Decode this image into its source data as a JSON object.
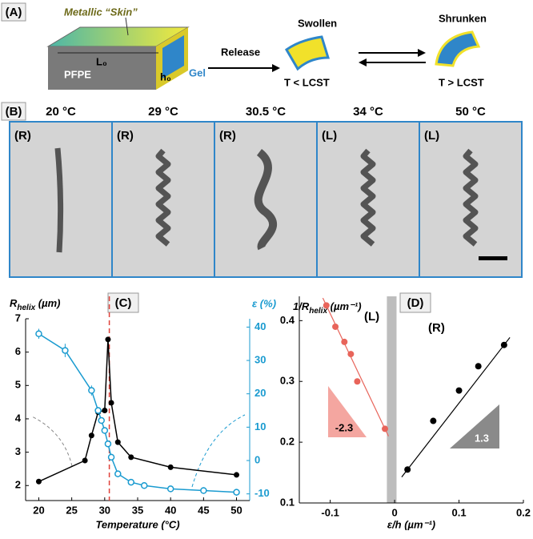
{
  "panel_a": {
    "label": "(A)",
    "skin": "Metallic “Skin”",
    "length": "L₀",
    "height": "h₀",
    "substrate": "PFPE",
    "gel": "Gel",
    "action": "Release",
    "state_1": "Swollen",
    "condition_1": "T < LCST",
    "state_2": "Shrunken",
    "condition_2": "T > LCST"
  },
  "panel_b": {
    "label": "(B)",
    "frames": [
      {
        "temperature": "20 °C",
        "handedness": "(R)"
      },
      {
        "temperature": "29 °C",
        "handedness": "(R)"
      },
      {
        "temperature": "30.5 °C",
        "handedness": "(R)"
      },
      {
        "temperature": "34 °C",
        "handedness": "(L)"
      },
      {
        "temperature": "50 °C",
        "handedness": "(L)"
      }
    ]
  },
  "chart_data": [
    {
      "type": "line",
      "panel_label": "(C)",
      "xlabel": "Temperature (°C)",
      "ylabel": "R",
      "ylabel_sub": "helix",
      "ylabel_unit": " (µm)",
      "y2label": "ε (%)",
      "xlim": [
        18,
        52
      ],
      "xticks": [
        20,
        25,
        30,
        35,
        40,
        45,
        50
      ],
      "ylim": [
        1.55,
        7
      ],
      "yticks": [
        2,
        3,
        4,
        5,
        6,
        7
      ],
      "y2lim": [
        -12,
        42.5
      ],
      "y2ticks": [
        -10,
        0,
        10,
        20,
        30,
        40
      ],
      "vline": 30.7,
      "series": [
        {
          "color": "#000000",
          "x": [
            20,
            27,
            28,
            29,
            30,
            30.5,
            31,
            32,
            34,
            40,
            50
          ],
          "values": [
            2.12,
            2.75,
            3.5,
            4.2,
            4.25,
            6.38,
            4.48,
            3.3,
            2.85,
            2.55,
            2.32
          ]
        },
        {
          "color": "#1a9bd0",
          "axis": "y2",
          "x": [
            20,
            24,
            28,
            29,
            29.5,
            30,
            30.5,
            31,
            32,
            34,
            36,
            40,
            45,
            50
          ],
          "values": [
            38,
            33,
            21,
            15,
            12,
            9,
            5,
            1,
            -4,
            -6.5,
            -7.5,
            -8.5,
            -9,
            -9.5
          ],
          "errors": [
            1.5,
            2,
            1.5,
            1,
            1,
            1,
            1,
            1,
            1,
            1,
            1,
            1,
            1,
            1
          ]
        }
      ]
    },
    {
      "type": "scatter",
      "panel_label": "(D)",
      "xlabel": "ε/h (µm⁻¹)",
      "ylabel": "1/R",
      "ylabel_sub": "helix",
      "ylabel_unit": " (µm⁻¹)",
      "xlim": [
        -0.148,
        0.2
      ],
      "xticks": [
        -0.1,
        0,
        0.1,
        0.2
      ],
      "ylim": [
        0.1,
        0.44
      ],
      "yticks": [
        0.1,
        0.2,
        0.3,
        0.4
      ],
      "band": [
        -0.012,
        0.003
      ],
      "series": [
        {
          "color": "#e8645a",
          "label": "(L)",
          "slope": -2.3,
          "x": [
            -0.106,
            -0.092,
            -0.078,
            -0.068,
            -0.058,
            -0.015
          ],
          "values": [
            0.425,
            0.39,
            0.365,
            0.345,
            0.3,
            0.222
          ]
        },
        {
          "color": "#000000",
          "label": "(R)",
          "slope": 1.3,
          "x": [
            0.02,
            0.06,
            0.1,
            0.13,
            0.17
          ],
          "values": [
            0.155,
            0.235,
            0.285,
            0.325,
            0.36
          ]
        }
      ]
    }
  ]
}
